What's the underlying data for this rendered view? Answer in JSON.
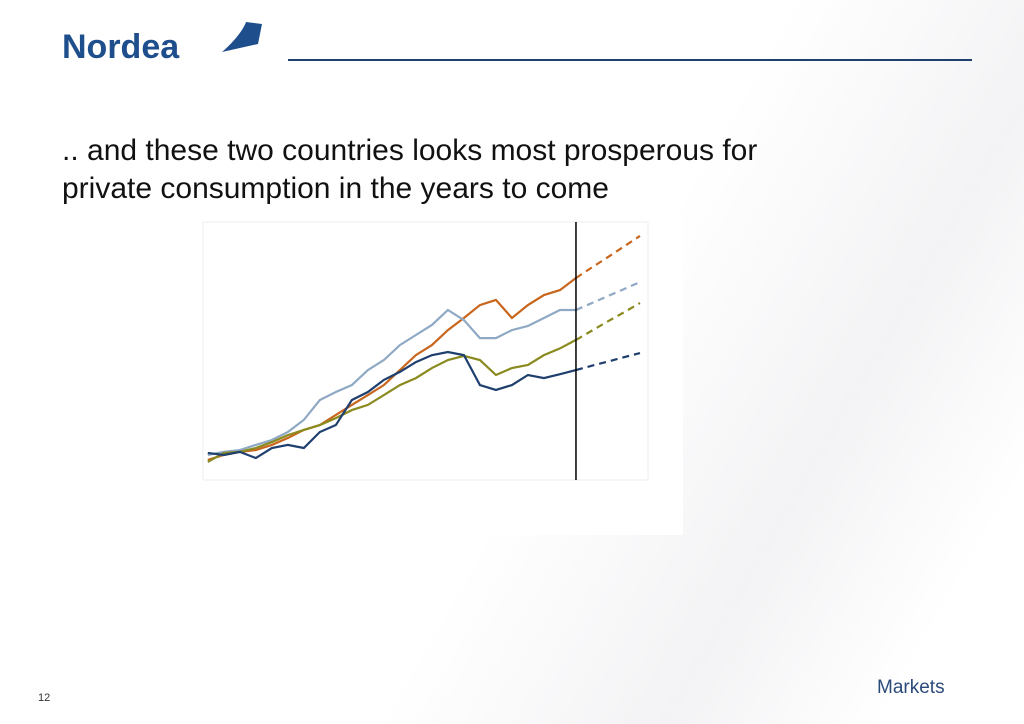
{
  "slide": {
    "logo": "Nordea",
    "page_number": "12",
    "footer": "Markets"
  },
  "chart_data": {
    "type": "line",
    "title": ".. and these two countries looks most prosperous for\nprivate consumption in the years to come",
    "x": [
      0,
      1,
      2,
      3,
      4,
      5,
      6,
      7,
      8,
      9,
      10,
      11,
      12,
      13,
      14,
      15,
      16,
      17,
      18,
      19,
      20,
      21,
      22,
      23,
      24,
      25,
      26,
      27
    ],
    "xlim": [
      -0.3,
      27.5
    ],
    "ylim": [
      0,
      100
    ],
    "divider_x": 23,
    "series": [
      {
        "color": "#c8661e",
        "dashed": false,
        "values": [
          7.8,
          9.7,
          10.9,
          11.6,
          13.6,
          16.3,
          19.4,
          21.3,
          25.2,
          29.1,
          32.9,
          36.8,
          42.6,
          48.4,
          52.3,
          58.1,
          62.8,
          67.8,
          69.8,
          62.8,
          67.8,
          71.7,
          73.6,
          78.3,
          null,
          null,
          null,
          null
        ]
      },
      {
        "color": "#c8661e",
        "dashed": true,
        "values": [
          null,
          null,
          null,
          null,
          null,
          null,
          null,
          null,
          null,
          null,
          null,
          null,
          null,
          null,
          null,
          null,
          null,
          null,
          null,
          null,
          null,
          null,
          null,
          78.3,
          82.4,
          86.4,
          90.5,
          94.6
        ]
      },
      {
        "color": "#8fa9c4",
        "dashed": false,
        "values": [
          9.7,
          10.9,
          11.6,
          13.6,
          15.5,
          18.6,
          23.3,
          31,
          34.1,
          36.8,
          42.6,
          46.5,
          52.3,
          56.2,
          60.1,
          65.9,
          62,
          55,
          55,
          58.1,
          59.7,
          62.8,
          65.9,
          65.9,
          null,
          null,
          null,
          null
        ]
      },
      {
        "color": "#8fa9c4",
        "dashed": true,
        "values": [
          null,
          null,
          null,
          null,
          null,
          null,
          null,
          null,
          null,
          null,
          null,
          null,
          null,
          null,
          null,
          null,
          null,
          null,
          null,
          null,
          null,
          null,
          null,
          65.9,
          68.6,
          71.3,
          74,
          76.7
        ]
      },
      {
        "color": "#8a8a1e",
        "dashed": false,
        "values": [
          7,
          10.5,
          10.9,
          12.4,
          14.7,
          17.4,
          19.4,
          21.3,
          24,
          27.1,
          29.1,
          32.9,
          36.8,
          39.5,
          43.4,
          46.5,
          48.1,
          46.5,
          40.7,
          43.4,
          44.6,
          48.4,
          51,
          54.3,
          null,
          null,
          null,
          null
        ]
      },
      {
        "color": "#8a8a1e",
        "dashed": true,
        "values": [
          null,
          null,
          null,
          null,
          null,
          null,
          null,
          null,
          null,
          null,
          null,
          null,
          null,
          null,
          null,
          null,
          null,
          null,
          null,
          null,
          null,
          null,
          null,
          54.3,
          57.9,
          61.5,
          65,
          68.6
        ]
      },
      {
        "color": "#1f3f6e",
        "dashed": false,
        "values": [
          10.5,
          9.7,
          10.9,
          8.5,
          12.4,
          13.6,
          12.4,
          18.6,
          21.3,
          31,
          34.1,
          38.8,
          41.9,
          45.7,
          48.4,
          49.6,
          48.4,
          36.8,
          34.9,
          36.8,
          40.7,
          39.5,
          41,
          42.6,
          null,
          null,
          null,
          null
        ]
      },
      {
        "color": "#1f3f6e",
        "dashed": true,
        "values": [
          null,
          null,
          null,
          null,
          null,
          null,
          null,
          null,
          null,
          null,
          null,
          null,
          null,
          null,
          null,
          null,
          null,
          null,
          null,
          null,
          null,
          null,
          null,
          42.6,
          44.3,
          45.9,
          47.6,
          49.2
        ]
      }
    ]
  }
}
